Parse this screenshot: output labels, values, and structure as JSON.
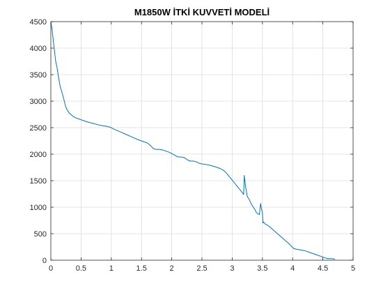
{
  "chart_data": {
    "type": "line",
    "title": "M1850W İTKİ KUVVETİ MODELİ",
    "xlabel": "",
    "ylabel": "",
    "xlim": [
      0,
      5
    ],
    "ylim": [
      0,
      4500
    ],
    "xticks": [
      0,
      0.5,
      1,
      1.5,
      2,
      2.5,
      3,
      3.5,
      4,
      4.5,
      5
    ],
    "xtick_labels": [
      "0",
      "0.5",
      "1",
      "1.5",
      "2",
      "2.5",
      "3",
      "3.5",
      "4",
      "4.5",
      "5"
    ],
    "yticks": [
      0,
      500,
      1000,
      1500,
      2000,
      2500,
      3000,
      3500,
      4000,
      4500
    ],
    "ytick_labels": [
      "0",
      "500",
      "1000",
      "1500",
      "2000",
      "2500",
      "3000",
      "3500",
      "4000",
      "4500"
    ],
    "grid": true,
    "series": [
      {
        "color": "#0072BD",
        "x": [
          0,
          0.02,
          0.05,
          0.08,
          0.1,
          0.12,
          0.15,
          0.2,
          0.25,
          0.3,
          0.35,
          0.4,
          0.5,
          0.6,
          0.7,
          0.8,
          0.9,
          0.98,
          1.05,
          1.15,
          1.25,
          1.35,
          1.45,
          1.55,
          1.6,
          1.65,
          1.7,
          1.75,
          1.8,
          1.85,
          1.9,
          1.95,
          2.0,
          2.05,
          2.1,
          2.15,
          2.2,
          2.25,
          2.3,
          2.35,
          2.4,
          2.45,
          2.5,
          2.55,
          2.6,
          2.65,
          2.7,
          2.75,
          2.8,
          2.85,
          2.9,
          2.95,
          3.0,
          3.05,
          3.1,
          3.15,
          3.19,
          3.2,
          3.22,
          3.25,
          3.28,
          3.3,
          3.32,
          3.35,
          3.38,
          3.4,
          3.42,
          3.45,
          3.47,
          3.48,
          3.5,
          3.51,
          3.52,
          3.55,
          3.6,
          3.65,
          3.7,
          3.75,
          3.8,
          3.85,
          3.9,
          3.95,
          4.0,
          4.02,
          4.05,
          4.1,
          4.2,
          4.3,
          4.4,
          4.5,
          4.55,
          4.6,
          4.65,
          4.7
        ],
        "y": [
          4500,
          4350,
          4050,
          3750,
          3650,
          3500,
          3300,
          3100,
          2880,
          2780,
          2730,
          2690,
          2650,
          2610,
          2580,
          2550,
          2530,
          2510,
          2470,
          2420,
          2370,
          2320,
          2270,
          2230,
          2210,
          2160,
          2100,
          2090,
          2090,
          2080,
          2060,
          2040,
          2010,
          1980,
          1950,
          1945,
          1940,
          1900,
          1870,
          1870,
          1860,
          1830,
          1815,
          1810,
          1800,
          1785,
          1770,
          1750,
          1730,
          1700,
          1650,
          1580,
          1510,
          1440,
          1370,
          1300,
          1240,
          1600,
          1400,
          1200,
          1150,
          1100,
          1050,
          1000,
          950,
          900,
          880,
          860,
          1070,
          1000,
          890,
          700,
          720,
          680,
          650,
          600,
          550,
          500,
          450,
          400,
          350,
          300,
          240,
          220,
          210,
          200,
          180,
          140,
          100,
          60,
          40,
          30,
          30,
          20
        ]
      }
    ]
  }
}
